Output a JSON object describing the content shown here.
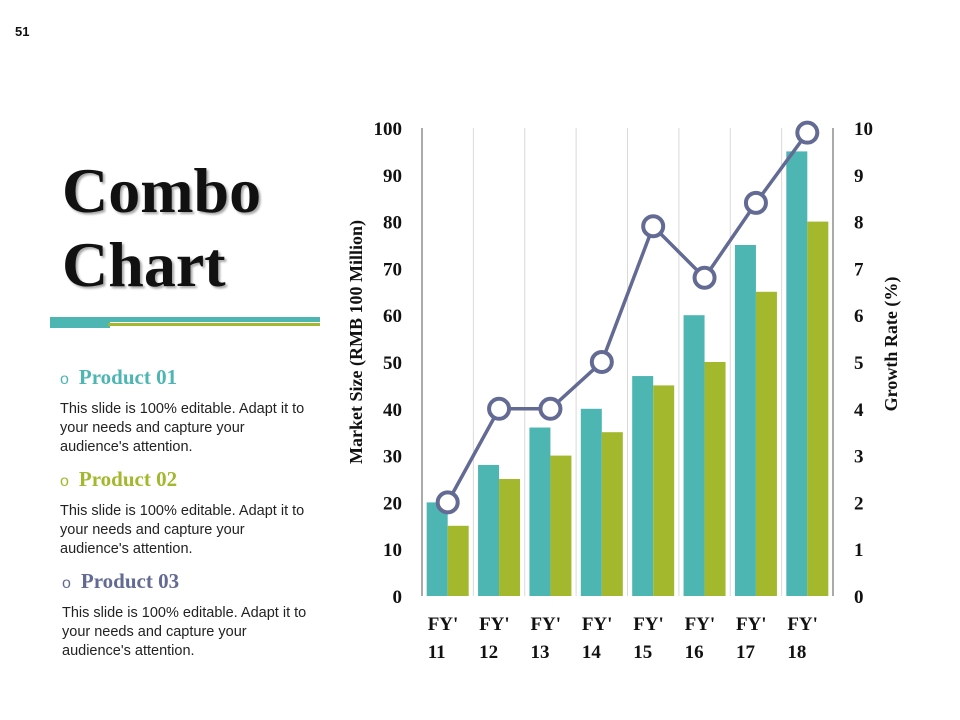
{
  "page_number": "51",
  "title_lines": [
    "Combo",
    "Chart"
  ],
  "colors": {
    "teal": "#4db6b3",
    "green": "#a3b82c",
    "line": "#636a93"
  },
  "products": [
    {
      "bullet": "o",
      "name": "Product 01",
      "color": "#4db6b3",
      "description": "This slide is 100% editable. Adapt it to your needs and capture your audience's attention."
    },
    {
      "bullet": "o",
      "name": "Product 02",
      "color": "#a3b82c",
      "description": "This slide is 100% editable. Adapt it to your needs and capture your audience's attention."
    },
    {
      "bullet": "o",
      "name": "Product 03",
      "color": "#636a93",
      "description": "This slide is 100% editable. Adapt it to your needs and capture your audience's attention."
    }
  ],
  "chart_data": {
    "type": "bar",
    "categories": [
      [
        "FY'",
        "11"
      ],
      [
        "FY'",
        "12"
      ],
      [
        "FY'",
        "13"
      ],
      [
        "FY'",
        "14"
      ],
      [
        "FY'",
        "15"
      ],
      [
        "FY'",
        "16"
      ],
      [
        "FY'",
        "17"
      ],
      [
        "FY'",
        "18"
      ]
    ],
    "series": [
      {
        "name": "Product 01",
        "kind": "bar",
        "axis": "left",
        "color": "#4db6b3",
        "values": [
          20,
          28,
          36,
          40,
          47,
          60,
          75,
          95
        ]
      },
      {
        "name": "Product 02",
        "kind": "bar",
        "axis": "left",
        "color": "#a3b82c",
        "values": [
          15,
          25,
          30,
          35,
          45,
          50,
          65,
          80
        ]
      },
      {
        "name": "Product 03",
        "kind": "line",
        "axis": "right",
        "color": "#636a93",
        "values": [
          2,
          4,
          4,
          5,
          7.9,
          6.8,
          8.4,
          9.9
        ]
      }
    ],
    "ylabel": "Market Size (RMB 100 Million)",
    "ylabel_right": "Growth Rate (%)",
    "ylim": [
      0,
      100
    ],
    "ylim_right": [
      0,
      10
    ],
    "yticks": [
      "0",
      "10",
      "20",
      "30",
      "40",
      "50",
      "60",
      "70",
      "80",
      "90",
      "100"
    ],
    "yticks_right": [
      "0",
      "1",
      "2",
      "3",
      "4",
      "5",
      "6",
      "7",
      "8",
      "9",
      "10"
    ],
    "grid": "vertical"
  }
}
